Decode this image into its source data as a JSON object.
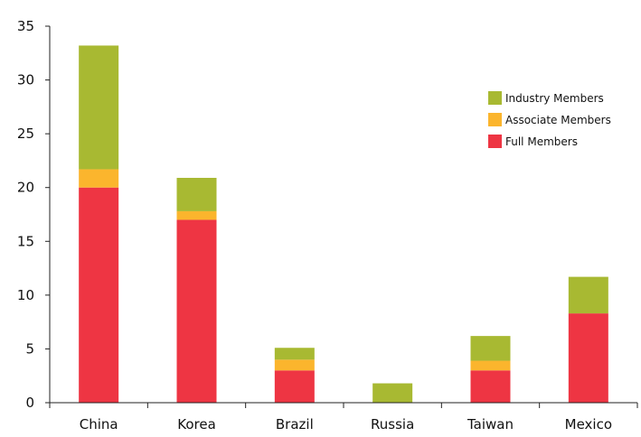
{
  "chart_data": {
    "type": "bar",
    "stacked": true,
    "categories": [
      "China",
      "Korea",
      "Brazil",
      "Russia",
      "Taiwan",
      "Mexico"
    ],
    "series": [
      {
        "name": "Full Members",
        "color": "#ee3543",
        "values": [
          20,
          17,
          3,
          0,
          3,
          8.3
        ]
      },
      {
        "name": "Associate Members",
        "color": "#fbb52d",
        "values": [
          1.7,
          0.8,
          1,
          0,
          0.9,
          0
        ]
      },
      {
        "name": "Industry Members",
        "color": "#a8b932",
        "values": [
          11.5,
          3.1,
          1.1,
          1.8,
          2.3,
          3.4
        ]
      }
    ],
    "ylim": [
      0,
      35
    ],
    "yticks": [
      0,
      5,
      10,
      15,
      20,
      25,
      30,
      35
    ],
    "xlabel": "",
    "ylabel": "",
    "grid": false,
    "legend": {
      "position": "top-right",
      "order": [
        "Industry Members",
        "Associate Members",
        "Full Members"
      ]
    }
  }
}
